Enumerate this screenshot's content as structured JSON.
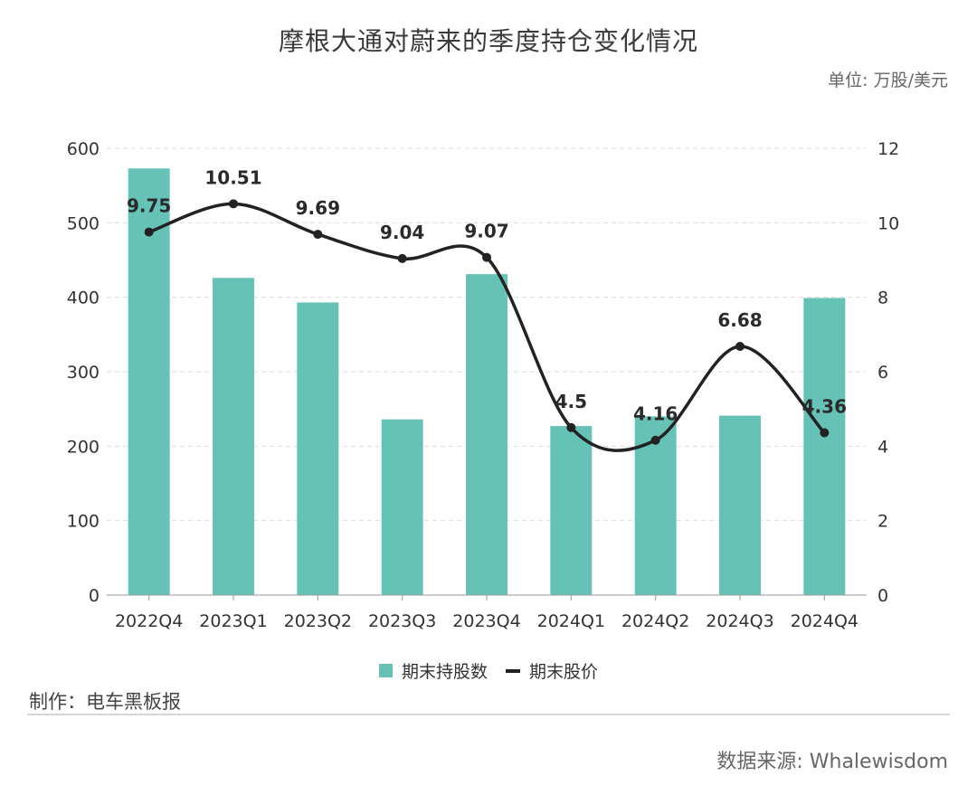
{
  "title": "摩根大通对蔚来的季度持仓变化情况",
  "unit": "单位: 万股/美元",
  "legend": {
    "bar_label": "期末持股数",
    "line_label": "期末股价"
  },
  "maker": "制作：电车黑板报",
  "source": "数据来源: Whalewisdom",
  "colors": {
    "bar": "#66c2b6",
    "line": "#222222",
    "grid": "#dddddd",
    "axis_text": "#333333"
  },
  "chart_data": {
    "type": "bar+line",
    "title": "摩根大通对蔚来的季度持仓变化情况",
    "categories": [
      "2022Q4",
      "2023Q1",
      "2023Q2",
      "2023Q3",
      "2023Q4",
      "2024Q1",
      "2024Q2",
      "2024Q3",
      "2024Q4"
    ],
    "series": [
      {
        "name": "期末持股数",
        "type": "bar",
        "axis": "left",
        "values": [
          573,
          426,
          393,
          236,
          431,
          227,
          240,
          241,
          399
        ]
      },
      {
        "name": "期末股价",
        "type": "line",
        "axis": "right",
        "values": [
          9.75,
          10.51,
          9.69,
          9.04,
          9.07,
          4.5,
          4.16,
          6.68,
          4.36
        ],
        "labels": [
          "9.75",
          "10.51",
          "9.69",
          "9.04",
          "9.07",
          "4.5",
          "4.16",
          "6.68",
          "4.36"
        ]
      }
    ],
    "y_left": {
      "min": 0,
      "max": 600,
      "ticks": [
        0,
        100,
        200,
        300,
        400,
        500,
        600
      ]
    },
    "y_right": {
      "min": 0,
      "max": 12,
      "ticks": [
        0,
        2,
        4,
        6,
        8,
        10,
        12
      ]
    },
    "grid": true,
    "legend_position": "bottom-center"
  }
}
